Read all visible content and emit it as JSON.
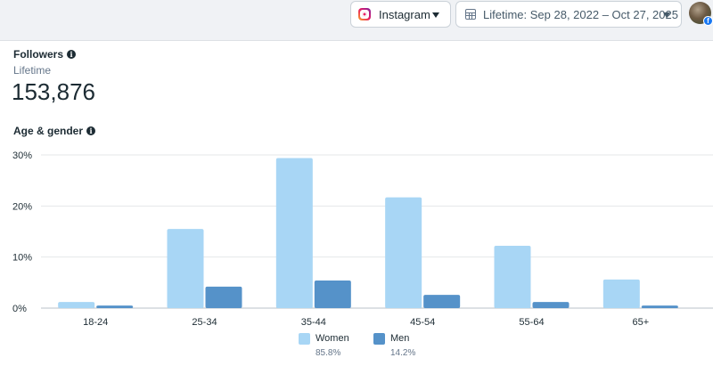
{
  "header": {
    "platform": {
      "label": "Instagram",
      "icon": "instagram-icon"
    },
    "date_range": {
      "label": "Lifetime: Sep 28, 2022 – Oct 27, 2025",
      "icon": "calendar-icon"
    },
    "badge": "f"
  },
  "followers": {
    "title": "Followers",
    "period": "Lifetime",
    "count": "153,876"
  },
  "age_gender": {
    "title": "Age & gender",
    "legend": [
      {
        "name": "Women",
        "share": "85.8%",
        "color": "#a8d6f5"
      },
      {
        "name": "Men",
        "share": "14.2%",
        "color": "#5592c9"
      }
    ]
  },
  "chart_data": {
    "type": "bar",
    "categories": [
      "18-24",
      "25-34",
      "35-44",
      "45-54",
      "55-64",
      "65+"
    ],
    "series": [
      {
        "name": "Women",
        "values": [
          1.2,
          15.5,
          29.4,
          21.7,
          12.2,
          5.6
        ]
      },
      {
        "name": "Men",
        "values": [
          0.5,
          4.2,
          5.4,
          2.6,
          1.2,
          0.5
        ]
      }
    ],
    "yticks": [
      "30%",
      "20%",
      "10%",
      "0%"
    ],
    "ylim": [
      0,
      30
    ],
    "grid": true,
    "legend_position": "bottom"
  }
}
